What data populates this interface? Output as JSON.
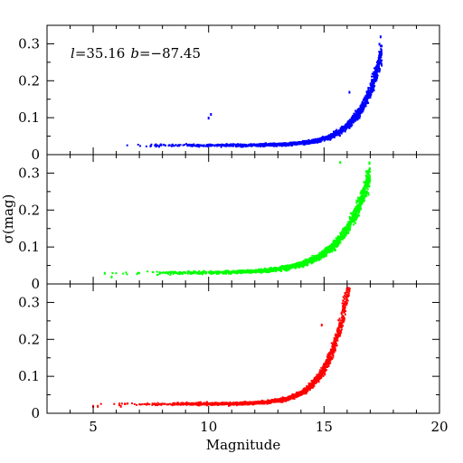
{
  "chart_data": {
    "type": "scatter",
    "xlabel": "Magnitude",
    "ylabel": "σ(mag)",
    "xlim": [
      3,
      20
    ],
    "x_ticks": [
      "5",
      "10",
      "15",
      "20"
    ],
    "annotation": {
      "l_sym": "l",
      "l_val": "=35.16",
      "b_sym": "b",
      "b_val": "=−87.45"
    },
    "panels": [
      {
        "name": "blue",
        "color": "#0000ff",
        "ylim": [
          0,
          0.35
        ],
        "y_ticks": [
          "0",
          "0.1",
          "0.2",
          "0.3"
        ],
        "floor": 0.025,
        "amp": 0.15,
        "mag_at_amp": 17.0,
        "growth": 1.05,
        "mag_range": [
          6.0,
          17.5
        ],
        "outliers": [
          [
            10.0,
            0.1
          ],
          [
            10.1,
            0.11
          ],
          [
            16.1,
            0.17
          ],
          [
            17.4,
            0.3
          ],
          [
            17.45,
            0.32
          ],
          [
            17.3,
            0.21
          ]
        ]
      },
      {
        "name": "green",
        "color": "#00ff00",
        "ylim": [
          0,
          0.35
        ],
        "y_ticks": [
          "0",
          "0.1",
          "0.2",
          "0.3"
        ],
        "floor": 0.03,
        "amp": 0.25,
        "mag_at_amp": 16.9,
        "growth": 0.82,
        "mag_range": [
          5.4,
          17.0
        ],
        "outliers": [
          [
            5.5,
            0.03
          ],
          [
            5.8,
            0.02
          ],
          [
            15.7,
            0.33
          ],
          [
            16.9,
            0.28
          ]
        ]
      },
      {
        "name": "red",
        "color": "#ff0000",
        "ylim": [
          0,
          0.35
        ],
        "y_ticks": [
          "0",
          "0.1",
          "0.2",
          "0.3"
        ],
        "floor": 0.025,
        "amp": 0.3,
        "mag_at_amp": 16.0,
        "growth": 1.15,
        "mag_range": [
          5.0,
          16.2
        ],
        "outliers": [
          [
            5.0,
            0.02
          ],
          [
            5.2,
            0.02
          ],
          [
            6.2,
            0.02
          ],
          [
            14.9,
            0.24
          ],
          [
            16.0,
            0.33
          ]
        ]
      }
    ]
  }
}
